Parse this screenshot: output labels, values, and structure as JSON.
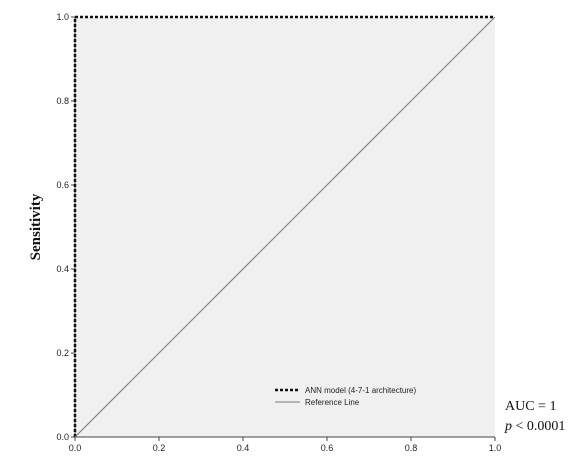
{
  "chart_data": {
    "type": "line",
    "title": "",
    "xlabel": "",
    "ylabel": "Sensitivity",
    "xlim": [
      0.0,
      1.0
    ],
    "ylim": [
      0.0,
      1.0
    ],
    "x_ticks": [
      "0.0",
      "0.2",
      "0.4",
      "0.6",
      "0.8",
      "1.0"
    ],
    "y_ticks": [
      "0.0",
      "0.2",
      "0.4",
      "0.6",
      "0.8",
      "1.0"
    ],
    "grid": false,
    "legend": "bottom-right",
    "series": [
      {
        "name": "ANN model (4-7-1 architecture)",
        "style": "dashed",
        "color": "#111111",
        "x": [
          0.0,
          0.0,
          1.0
        ],
        "y": [
          0.0,
          1.0,
          1.0
        ]
      },
      {
        "name": "Reference Line",
        "style": "solid",
        "color": "#777777",
        "x": [
          0.0,
          1.0
        ],
        "y": [
          0.0,
          1.0
        ]
      }
    ]
  },
  "stats": {
    "auc": "AUC = 1",
    "p_symbol": "p",
    "p_rest": " < 0.0001"
  },
  "colors": {
    "plot_background": "#f0f0f0",
    "axis": "#444444"
  }
}
